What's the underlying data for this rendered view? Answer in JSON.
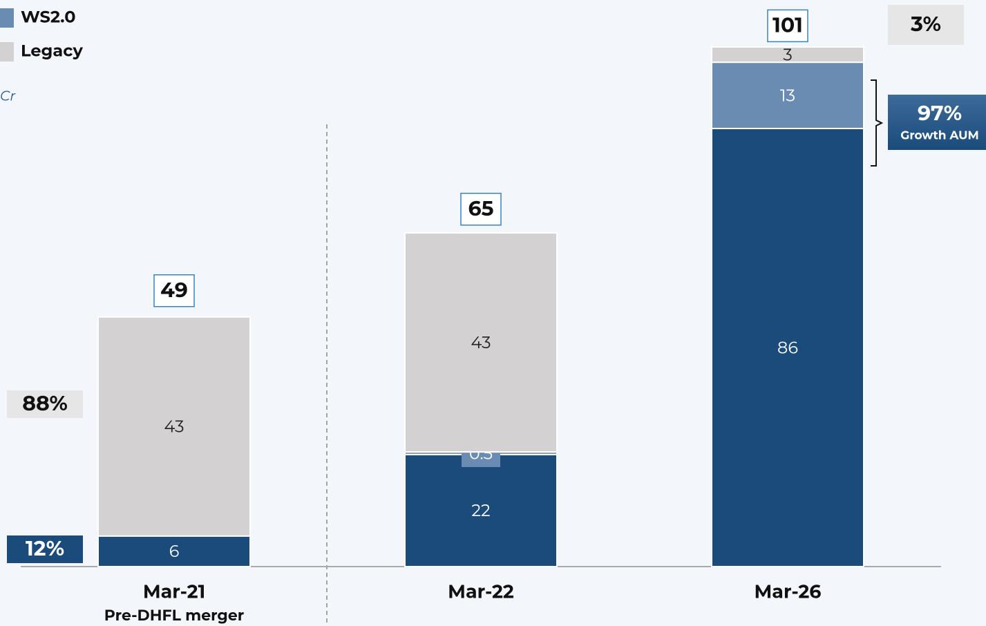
{
  "chart_data": {
    "type": "bar",
    "stacked": true,
    "unit": "Cr",
    "categories": [
      "Mar-21",
      "Mar-22",
      "Mar-26"
    ],
    "x_note": "Pre-DHFL merger",
    "series": [
      {
        "color": "#1a4b7a",
        "values": [
          6,
          22,
          86
        ]
      },
      {
        "name": "WS2.0",
        "color": "#6a8cb2",
        "values": [
          null,
          0.5,
          13
        ]
      },
      {
        "name": "Legacy",
        "color": "#d3d1d2",
        "values": [
          43,
          43,
          3
        ]
      }
    ],
    "totals": [
      49,
      65,
      101
    ],
    "ylim": [
      0,
      110
    ],
    "annotations": {
      "legacy_share_start": "88%",
      "growth_share_start": "12%",
      "legacy_share_end": "3%",
      "growth_share_end": "97%",
      "growth_label": "Growth AUM"
    }
  }
}
